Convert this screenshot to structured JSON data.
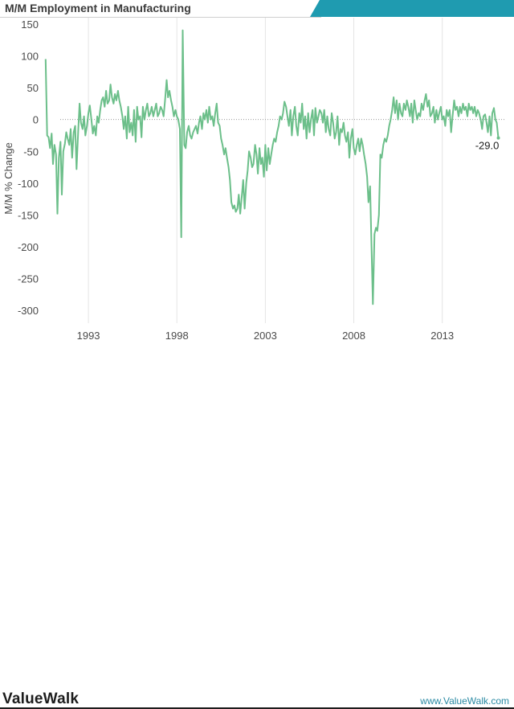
{
  "header": {
    "title": "M/M Employment in Manufacturing"
  },
  "footer": {
    "brand": "ValueWalk",
    "site": "www.ValueWalk.com"
  },
  "colors": {
    "line": "#6cbf8a",
    "accent": "#1f9bb0",
    "zero_line": "#9a9a9a",
    "grid": "#e4e4e4"
  },
  "chart_data": {
    "type": "line",
    "title": "M/M Employment in Manufacturing",
    "xlabel": "",
    "ylabel": "M/M % Change",
    "xlim": [
      1990.5,
      2016.6
    ],
    "ylim": [
      -320,
      160
    ],
    "x_ticks": [
      1993,
      1998,
      2003,
      2008,
      2013
    ],
    "y_ticks": [
      150,
      100,
      50,
      0,
      -50,
      -100,
      -150,
      -200,
      -250,
      -300
    ],
    "grid": true,
    "zero_reference_line": true,
    "last_value_label": "-29.0",
    "series": [
      {
        "points": [
          [
            1990.58,
            95
          ],
          [
            1990.67,
            -25
          ],
          [
            1990.75,
            -28
          ],
          [
            1990.83,
            -45
          ],
          [
            1990.92,
            -22
          ],
          [
            1991.0,
            -70
          ],
          [
            1991.08,
            -40
          ],
          [
            1991.17,
            -55
          ],
          [
            1991.25,
            -148
          ],
          [
            1991.33,
            -60
          ],
          [
            1991.42,
            -35
          ],
          [
            1991.5,
            -118
          ],
          [
            1991.58,
            -50
          ],
          [
            1991.67,
            -38
          ],
          [
            1991.75,
            -20
          ],
          [
            1991.83,
            -30
          ],
          [
            1991.92,
            -40
          ],
          [
            1992.0,
            -15
          ],
          [
            1992.08,
            -60
          ],
          [
            1992.17,
            -20
          ],
          [
            1992.25,
            -10
          ],
          [
            1992.33,
            -78
          ],
          [
            1992.42,
            -20
          ],
          [
            1992.5,
            25
          ],
          [
            1992.58,
            -5
          ],
          [
            1992.67,
            -15
          ],
          [
            1992.75,
            5
          ],
          [
            1992.83,
            -25
          ],
          [
            1992.92,
            -10
          ],
          [
            1993.0,
            10
          ],
          [
            1993.08,
            22
          ],
          [
            1993.17,
            0
          ],
          [
            1993.25,
            -22
          ],
          [
            1993.33,
            -10
          ],
          [
            1993.42,
            -25
          ],
          [
            1993.5,
            5
          ],
          [
            1993.58,
            -5
          ],
          [
            1993.67,
            15
          ],
          [
            1993.75,
            30
          ],
          [
            1993.83,
            35
          ],
          [
            1993.92,
            20
          ],
          [
            1994.0,
            45
          ],
          [
            1994.08,
            25
          ],
          [
            1994.17,
            30
          ],
          [
            1994.25,
            55
          ],
          [
            1994.33,
            35
          ],
          [
            1994.42,
            25
          ],
          [
            1994.5,
            40
          ],
          [
            1994.58,
            30
          ],
          [
            1994.67,
            45
          ],
          [
            1994.75,
            30
          ],
          [
            1994.83,
            20
          ],
          [
            1994.92,
            5
          ],
          [
            1995.0,
            -15
          ],
          [
            1995.08,
            5
          ],
          [
            1995.17,
            -30
          ],
          [
            1995.25,
            20
          ],
          [
            1995.33,
            -20
          ],
          [
            1995.42,
            -5
          ],
          [
            1995.5,
            -25
          ],
          [
            1995.58,
            15
          ],
          [
            1995.67,
            -35
          ],
          [
            1995.75,
            20
          ],
          [
            1995.83,
            0
          ],
          [
            1995.92,
            5
          ],
          [
            1996.0,
            -28
          ],
          [
            1996.08,
            20
          ],
          [
            1996.17,
            0
          ],
          [
            1996.25,
            15
          ],
          [
            1996.33,
            25
          ],
          [
            1996.42,
            5
          ],
          [
            1996.5,
            10
          ],
          [
            1996.58,
            20
          ],
          [
            1996.67,
            5
          ],
          [
            1996.75,
            15
          ],
          [
            1996.83,
            25
          ],
          [
            1996.92,
            5
          ],
          [
            1997.0,
            10
          ],
          [
            1997.08,
            20
          ],
          [
            1997.17,
            15
          ],
          [
            1997.25,
            5
          ],
          [
            1997.33,
            30
          ],
          [
            1997.42,
            62
          ],
          [
            1997.5,
            35
          ],
          [
            1997.58,
            45
          ],
          [
            1997.67,
            30
          ],
          [
            1997.75,
            20
          ],
          [
            1997.83,
            5
          ],
          [
            1997.92,
            15
          ],
          [
            1998.0,
            5
          ],
          [
            1998.08,
            0
          ],
          [
            1998.17,
            -15
          ],
          [
            1998.25,
            -185
          ],
          [
            1998.33,
            140
          ],
          [
            1998.42,
            -40
          ],
          [
            1998.5,
            -45
          ],
          [
            1998.58,
            -20
          ],
          [
            1998.67,
            -10
          ],
          [
            1998.75,
            -25
          ],
          [
            1998.83,
            -30
          ],
          [
            1998.92,
            -20
          ],
          [
            1999.0,
            -15
          ],
          [
            1999.08,
            -10
          ],
          [
            1999.17,
            -22
          ],
          [
            1999.25,
            -5
          ],
          [
            1999.33,
            5
          ],
          [
            1999.42,
            -15
          ],
          [
            1999.5,
            10
          ],
          [
            1999.58,
            0
          ],
          [
            1999.67,
            15
          ],
          [
            1999.75,
            -5
          ],
          [
            1999.83,
            20
          ],
          [
            1999.92,
            0
          ],
          [
            2000.0,
            5
          ],
          [
            2000.08,
            -10
          ],
          [
            2000.17,
            10
          ],
          [
            2000.25,
            25
          ],
          [
            2000.33,
            -5
          ],
          [
            2000.42,
            -10
          ],
          [
            2000.5,
            -30
          ],
          [
            2000.58,
            -40
          ],
          [
            2000.67,
            -55
          ],
          [
            2000.75,
            -45
          ],
          [
            2000.83,
            -60
          ],
          [
            2000.92,
            -75
          ],
          [
            2001.0,
            -95
          ],
          [
            2001.08,
            -130
          ],
          [
            2001.17,
            -140
          ],
          [
            2001.25,
            -135
          ],
          [
            2001.33,
            -145
          ],
          [
            2001.42,
            -140
          ],
          [
            2001.5,
            -118
          ],
          [
            2001.58,
            -148
          ],
          [
            2001.67,
            -120
          ],
          [
            2001.75,
            -95
          ],
          [
            2001.83,
            -140
          ],
          [
            2001.92,
            -100
          ],
          [
            2002.0,
            -80
          ],
          [
            2002.08,
            -50
          ],
          [
            2002.17,
            -60
          ],
          [
            2002.25,
            -75
          ],
          [
            2002.33,
            -70
          ],
          [
            2002.42,
            -40
          ],
          [
            2002.5,
            -55
          ],
          [
            2002.58,
            -85
          ],
          [
            2002.67,
            -45
          ],
          [
            2002.75,
            -70
          ],
          [
            2002.83,
            -60
          ],
          [
            2002.92,
            -90
          ],
          [
            2003.0,
            -40
          ],
          [
            2003.08,
            -80
          ],
          [
            2003.17,
            -45
          ],
          [
            2003.25,
            -70
          ],
          [
            2003.33,
            -55
          ],
          [
            2003.42,
            -40
          ],
          [
            2003.5,
            -30
          ],
          [
            2003.58,
            -35
          ],
          [
            2003.67,
            -20
          ],
          [
            2003.75,
            -10
          ],
          [
            2003.83,
            5
          ],
          [
            2003.92,
            0
          ],
          [
            2004.0,
            10
          ],
          [
            2004.08,
            28
          ],
          [
            2004.17,
            20
          ],
          [
            2004.25,
            5
          ],
          [
            2004.33,
            -10
          ],
          [
            2004.42,
            15
          ],
          [
            2004.5,
            -25
          ],
          [
            2004.58,
            5
          ],
          [
            2004.67,
            20
          ],
          [
            2004.75,
            -10
          ],
          [
            2004.83,
            -25
          ],
          [
            2004.92,
            10
          ],
          [
            2005.0,
            -5
          ],
          [
            2005.08,
            25
          ],
          [
            2005.17,
            -15
          ],
          [
            2005.25,
            5
          ],
          [
            2005.33,
            -30
          ],
          [
            2005.42,
            10
          ],
          [
            2005.5,
            -20
          ],
          [
            2005.58,
            0
          ],
          [
            2005.67,
            15
          ],
          [
            2005.75,
            -25
          ],
          [
            2005.83,
            18
          ],
          [
            2005.92,
            -5
          ],
          [
            2006.0,
            5
          ],
          [
            2006.08,
            15
          ],
          [
            2006.17,
            10
          ],
          [
            2006.25,
            -5
          ],
          [
            2006.33,
            15
          ],
          [
            2006.42,
            -20
          ],
          [
            2006.5,
            5
          ],
          [
            2006.58,
            -15
          ],
          [
            2006.67,
            -25
          ],
          [
            2006.75,
            10
          ],
          [
            2006.83,
            -5
          ],
          [
            2006.92,
            -30
          ],
          [
            2007.0,
            -20
          ],
          [
            2007.08,
            5
          ],
          [
            2007.17,
            -40
          ],
          [
            2007.25,
            -15
          ],
          [
            2007.33,
            -20
          ],
          [
            2007.42,
            -5
          ],
          [
            2007.5,
            -25
          ],
          [
            2007.58,
            -35
          ],
          [
            2007.67,
            -20
          ],
          [
            2007.75,
            -60
          ],
          [
            2007.83,
            -30
          ],
          [
            2007.92,
            -15
          ],
          [
            2008.0,
            -45
          ],
          [
            2008.08,
            -55
          ],
          [
            2008.17,
            -40
          ],
          [
            2008.25,
            -30
          ],
          [
            2008.33,
            -50
          ],
          [
            2008.42,
            -30
          ],
          [
            2008.5,
            -40
          ],
          [
            2008.58,
            -55
          ],
          [
            2008.67,
            -70
          ],
          [
            2008.75,
            -90
          ],
          [
            2008.83,
            -130
          ],
          [
            2008.92,
            -105
          ],
          [
            2009.0,
            -200
          ],
          [
            2009.08,
            -290
          ],
          [
            2009.17,
            -180
          ],
          [
            2009.25,
            -170
          ],
          [
            2009.33,
            -175
          ],
          [
            2009.42,
            -150
          ],
          [
            2009.5,
            -55
          ],
          [
            2009.58,
            -60
          ],
          [
            2009.67,
            -40
          ],
          [
            2009.75,
            -30
          ],
          [
            2009.83,
            -35
          ],
          [
            2009.92,
            -25
          ],
          [
            2010.0,
            -10
          ],
          [
            2010.08,
            0
          ],
          [
            2010.17,
            15
          ],
          [
            2010.25,
            35
          ],
          [
            2010.33,
            10
          ],
          [
            2010.42,
            30
          ],
          [
            2010.5,
            0
          ],
          [
            2010.58,
            25
          ],
          [
            2010.67,
            10
          ],
          [
            2010.75,
            5
          ],
          [
            2010.83,
            25
          ],
          [
            2010.92,
            15
          ],
          [
            2011.0,
            30
          ],
          [
            2011.08,
            20
          ],
          [
            2011.17,
            5
          ],
          [
            2011.25,
            25
          ],
          [
            2011.33,
            -5
          ],
          [
            2011.42,
            30
          ],
          [
            2011.5,
            15
          ],
          [
            2011.58,
            0
          ],
          [
            2011.67,
            10
          ],
          [
            2011.75,
            5
          ],
          [
            2011.83,
            25
          ],
          [
            2011.92,
            15
          ],
          [
            2012.0,
            30
          ],
          [
            2012.08,
            40
          ],
          [
            2012.17,
            20
          ],
          [
            2012.25,
            30
          ],
          [
            2012.33,
            5
          ],
          [
            2012.42,
            10
          ],
          [
            2012.5,
            20
          ],
          [
            2012.58,
            -5
          ],
          [
            2012.67,
            15
          ],
          [
            2012.75,
            0
          ],
          [
            2012.83,
            10
          ],
          [
            2012.92,
            20
          ],
          [
            2013.0,
            0
          ],
          [
            2013.08,
            5
          ],
          [
            2013.17,
            -10
          ],
          [
            2013.25,
            15
          ],
          [
            2013.33,
            5
          ],
          [
            2013.42,
            15
          ],
          [
            2013.5,
            -20
          ],
          [
            2013.58,
            5
          ],
          [
            2013.67,
            30
          ],
          [
            2013.75,
            15
          ],
          [
            2013.83,
            20
          ],
          [
            2013.92,
            5
          ],
          [
            2014.0,
            20
          ],
          [
            2014.08,
            10
          ],
          [
            2014.17,
            25
          ],
          [
            2014.25,
            15
          ],
          [
            2014.33,
            20
          ],
          [
            2014.42,
            5
          ],
          [
            2014.5,
            25
          ],
          [
            2014.58,
            15
          ],
          [
            2014.67,
            20
          ],
          [
            2014.75,
            10
          ],
          [
            2014.83,
            20
          ],
          [
            2014.92,
            5
          ],
          [
            2015.0,
            15
          ],
          [
            2015.08,
            10
          ],
          [
            2015.17,
            0
          ],
          [
            2015.25,
            -15
          ],
          [
            2015.33,
            5
          ],
          [
            2015.42,
            8
          ],
          [
            2015.5,
            -5
          ],
          [
            2015.58,
            -20
          ],
          [
            2015.67,
            5
          ],
          [
            2015.75,
            -25
          ],
          [
            2015.83,
            10
          ],
          [
            2015.92,
            18
          ],
          [
            2016.0,
            0
          ],
          [
            2016.08,
            -5
          ],
          [
            2016.17,
            -29
          ]
        ]
      }
    ]
  }
}
